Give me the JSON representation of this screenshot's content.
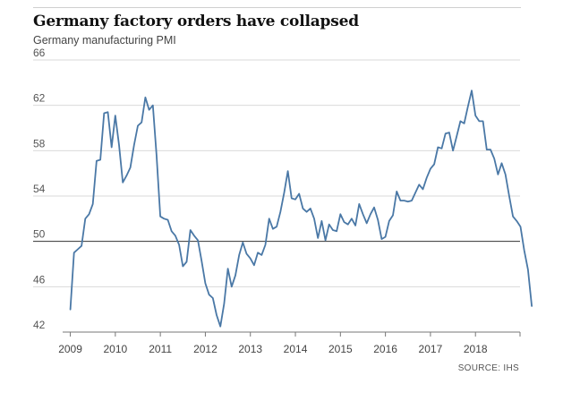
{
  "header": {
    "title": "Germany factory orders have collapsed",
    "subtitle": "Germany manufacturing PMI"
  },
  "source": "SOURCE: IHS",
  "colors": {
    "line": "#4a78a6",
    "grid": "#d9d9d9",
    "baseline": "#333333",
    "axis": "#777777"
  },
  "chart_data": {
    "type": "line",
    "title": "Germany factory orders have collapsed",
    "subtitle": "Germany manufacturing PMI",
    "xlabel": "",
    "ylabel": "",
    "xlim": [
      2008.83,
      2018.99
    ],
    "ylim": [
      42,
      66
    ],
    "y_ticks": [
      42,
      46,
      50,
      54,
      58,
      62,
      66
    ],
    "x_ticks": [
      2009,
      2010,
      2011,
      2012,
      2013,
      2014,
      2015,
      2016,
      2017,
      2018
    ],
    "reference_line": 50,
    "grid": true,
    "series": [
      {
        "name": "Germany manufacturing PMI",
        "start": [
          2009,
          1
        ],
        "frequency": "monthly",
        "values": [
          44.0,
          49.0,
          49.3,
          49.6,
          52.0,
          52.4,
          53.3,
          57.1,
          57.2,
          61.3,
          61.4,
          58.3,
          61.1,
          58.5,
          55.2,
          55.8,
          56.5,
          58.5,
          60.2,
          60.5,
          62.7,
          61.6,
          62.0,
          57.6,
          52.2,
          52.0,
          51.9,
          50.9,
          50.5,
          49.7,
          47.8,
          48.2,
          51.0,
          50.5,
          50.1,
          48.3,
          46.3,
          45.3,
          45.0,
          43.5,
          42.5,
          44.5,
          47.6,
          46.0,
          47.0,
          48.8,
          49.9,
          48.9,
          48.5,
          47.9,
          49.0,
          48.8,
          49.7,
          52.0,
          51.1,
          51.3,
          52.6,
          54.3,
          56.2,
          53.8,
          53.7,
          54.2,
          52.9,
          52.6,
          52.9,
          52.0,
          50.3,
          51.8,
          50.1,
          51.5,
          51.0,
          50.9,
          52.4,
          51.7,
          51.5,
          52.0,
          51.4,
          53.3,
          52.4,
          51.6,
          52.4,
          53.0,
          51.9,
          50.2,
          50.4,
          51.8,
          52.3,
          54.4,
          53.6,
          53.6,
          53.5,
          53.6,
          54.3,
          55.0,
          54.6,
          55.6,
          56.4,
          56.8,
          58.3,
          58.2,
          59.5,
          59.6,
          58.0,
          59.3,
          60.6,
          60.4,
          61.9,
          63.3,
          61.1,
          60.6,
          60.6,
          58.1,
          58.1,
          57.3,
          55.9,
          56.9,
          55.9,
          54.0,
          52.2,
          51.8,
          51.3,
          49.2,
          47.5,
          44.3
        ]
      }
    ]
  }
}
